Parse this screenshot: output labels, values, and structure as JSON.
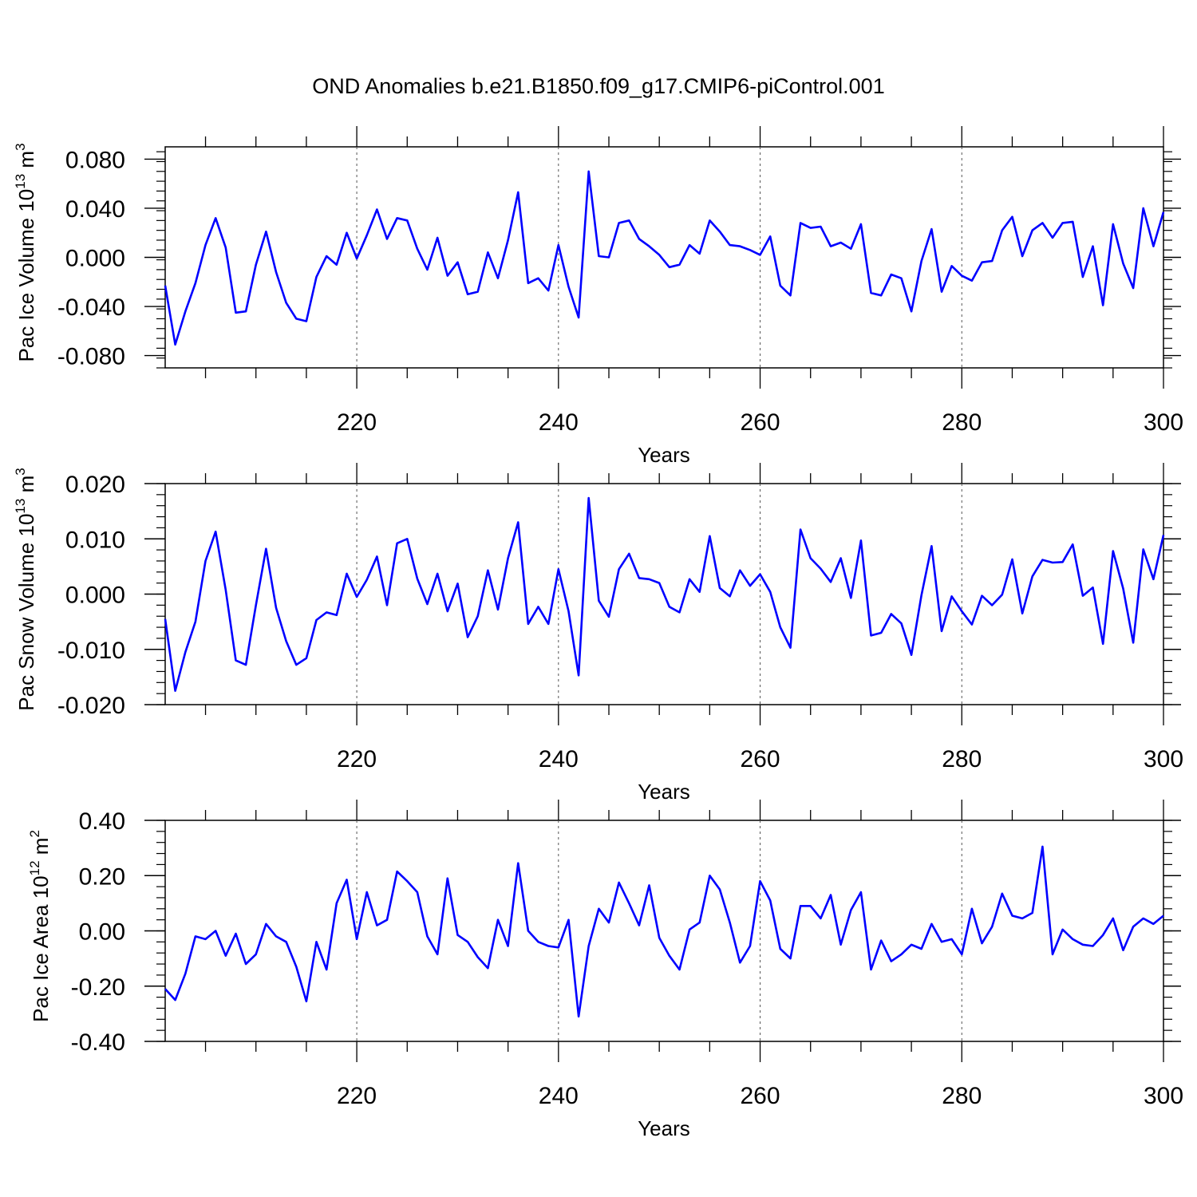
{
  "chart_data": {
    "title": "OND Anomalies b.e21.B1850.f09_g17.CMIP6-piControl.001",
    "line_color": "#0000ff",
    "years_start": 201,
    "panels": [
      {
        "type": "line",
        "name": "pac-ice-volume",
        "ylabel": "Pac Ice Volume 10",
        "ylabel_exp": "13",
        "ylabel_unit": " m",
        "ylabel_unit_exp": "3",
        "xlabel": "Years",
        "xlim": [
          201,
          300
        ],
        "ylim": [
          -0.09,
          0.09
        ],
        "yticks": [
          -0.08,
          -0.04,
          0.0,
          0.04,
          0.08
        ],
        "yticklabels": [
          "-0.080",
          "-0.040",
          "0.000",
          "0.040",
          "0.080"
        ],
        "xticks": [
          220,
          240,
          260,
          280,
          300
        ],
        "xticklabels": [
          "220",
          "240",
          "260",
          "280",
          "300"
        ],
        "values": [
          -0.023,
          -0.071,
          -0.044,
          -0.021,
          0.01,
          0.032,
          0.008,
          -0.045,
          -0.044,
          -0.006,
          0.021,
          -0.012,
          -0.037,
          -0.05,
          -0.052,
          -0.016,
          0.001,
          -0.006,
          0.02,
          -0.001,
          0.018,
          0.039,
          0.015,
          0.032,
          0.03,
          0.007,
          -0.01,
          0.016,
          -0.015,
          -0.004,
          -0.03,
          -0.028,
          0.004,
          -0.017,
          0.014,
          0.053,
          -0.021,
          -0.017,
          -0.027,
          0.01,
          -0.024,
          -0.049,
          0.07,
          0.001,
          0.0,
          0.028,
          0.03,
          0.015,
          0.009,
          0.002,
          -0.008,
          -0.006,
          0.01,
          0.003,
          0.03,
          0.021,
          0.01,
          0.009,
          0.006,
          0.002,
          0.017,
          -0.023,
          -0.031,
          0.028,
          0.024,
          0.025,
          0.009,
          0.012,
          0.007,
          0.027,
          -0.029,
          -0.031,
          -0.014,
          -0.017,
          -0.044,
          -0.003,
          0.023,
          -0.028,
          -0.007,
          -0.015,
          -0.019,
          -0.004,
          -0.003,
          0.022,
          0.033,
          0.001,
          0.022,
          0.028,
          0.016,
          0.028,
          0.029,
          -0.016,
          0.009,
          -0.039,
          0.027,
          -0.005,
          -0.025,
          0.04,
          0.009,
          0.037
        ]
      },
      {
        "type": "line",
        "name": "pac-snow-volume",
        "ylabel": "Pac Snow Volume 10",
        "ylabel_exp": "13",
        "ylabel_unit": " m",
        "ylabel_unit_exp": "3",
        "xlabel": "Years",
        "xlim": [
          201,
          300
        ],
        "ylim": [
          -0.02,
          0.02
        ],
        "yticks": [
          -0.02,
          -0.01,
          0.0,
          0.01,
          0.02
        ],
        "yticklabels": [
          "-0.020",
          "-0.010",
          "0.000",
          "0.010",
          "0.020"
        ],
        "xticks": [
          220,
          240,
          260,
          280,
          300
        ],
        "xticklabels": [
          "220",
          "240",
          "260",
          "280",
          "300"
        ],
        "values": [
          -0.0045,
          -0.0175,
          -0.0105,
          -0.005,
          0.006,
          0.0113,
          0.0008,
          -0.012,
          -0.0128,
          -0.002,
          0.0082,
          -0.0025,
          -0.0085,
          -0.0128,
          -0.0116,
          -0.0047,
          -0.0033,
          -0.0038,
          0.0037,
          -0.0005,
          0.0026,
          0.0068,
          -0.002,
          0.0092,
          0.01,
          0.0028,
          -0.0018,
          0.0037,
          -0.0031,
          0.0019,
          -0.0078,
          -0.004,
          0.0043,
          -0.0028,
          0.0065,
          0.013,
          -0.0054,
          -0.0023,
          -0.0054,
          0.0045,
          -0.0031,
          -0.0147,
          0.0174,
          -0.0012,
          -0.0041,
          0.0045,
          0.0073,
          0.0029,
          0.0027,
          0.002,
          -0.0023,
          -0.0033,
          0.0027,
          0.0004,
          0.0105,
          0.0011,
          -0.0004,
          0.0043,
          0.0015,
          0.0036,
          0.0004,
          -0.006,
          -0.0097,
          0.0117,
          0.0065,
          0.0046,
          0.0022,
          0.0065,
          -0.0007,
          0.0097,
          -0.0075,
          -0.007,
          -0.0036,
          -0.0053,
          -0.011,
          -0.0002,
          0.0087,
          -0.0067,
          -0.0004,
          -0.0031,
          -0.0055,
          -0.0003,
          -0.002,
          -0.0001,
          0.0063,
          -0.0035,
          0.0032,
          0.0062,
          0.0057,
          0.0058,
          0.009,
          -0.0003,
          0.0012,
          -0.009,
          0.0078,
          0.001,
          -0.0088,
          0.0081,
          0.0027,
          0.0107
        ]
      },
      {
        "type": "line",
        "name": "pac-ice-area",
        "ylabel": "Pac Ice Area 10",
        "ylabel_exp": "12",
        "ylabel_unit": " m",
        "ylabel_unit_exp": "2",
        "xlabel": "Years",
        "xlim": [
          201,
          300
        ],
        "ylim": [
          -0.4,
          0.4
        ],
        "yticks": [
          -0.4,
          -0.2,
          0.0,
          0.2,
          0.4
        ],
        "yticklabels": [
          "-0.40",
          "-0.20",
          "0.00",
          "0.20",
          "0.40"
        ],
        "xticks": [
          220,
          240,
          260,
          280,
          300
        ],
        "xticklabels": [
          "220",
          "240",
          "260",
          "280",
          "300"
        ],
        "values": [
          -0.21,
          -0.25,
          -0.155,
          -0.02,
          -0.03,
          0.0,
          -0.09,
          -0.01,
          -0.12,
          -0.085,
          0.025,
          -0.02,
          -0.04,
          -0.13,
          -0.255,
          -0.04,
          -0.14,
          0.1,
          0.185,
          -0.03,
          0.14,
          0.02,
          0.04,
          0.215,
          0.18,
          0.14,
          -0.02,
          -0.085,
          0.19,
          -0.015,
          -0.04,
          -0.095,
          -0.135,
          0.04,
          -0.055,
          0.245,
          0.0,
          -0.04,
          -0.055,
          -0.06,
          0.04,
          -0.31,
          -0.055,
          0.08,
          0.03,
          0.175,
          0.1,
          0.02,
          0.165,
          -0.025,
          -0.09,
          -0.14,
          0.005,
          0.03,
          0.2,
          0.15,
          0.03,
          -0.115,
          -0.055,
          0.18,
          0.11,
          -0.065,
          -0.1,
          0.09,
          0.09,
          0.045,
          0.13,
          -0.05,
          0.075,
          0.14,
          -0.14,
          -0.035,
          -0.11,
          -0.085,
          -0.05,
          -0.065,
          0.025,
          -0.04,
          -0.03,
          -0.085,
          0.08,
          -0.045,
          0.015,
          0.135,
          0.055,
          0.045,
          0.065,
          0.305,
          -0.085,
          0.005,
          -0.03,
          -0.05,
          -0.055,
          -0.015,
          0.045,
          -0.07,
          0.015,
          0.045,
          0.025,
          0.055
        ]
      }
    ]
  }
}
